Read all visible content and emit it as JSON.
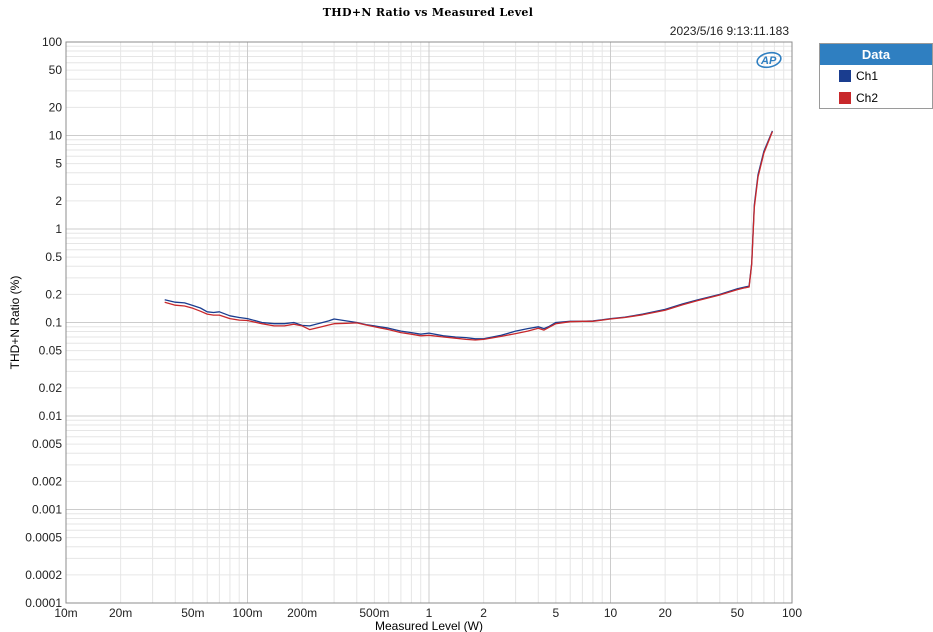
{
  "chart_data": {
    "type": "line",
    "title": "THD+N Ratio vs Measured Level",
    "timestamp": "2023/5/16 9:13:11.183",
    "xlabel": "Measured Level (W)",
    "ylabel": "THD+N Ratio (%)",
    "xscale": "log",
    "yscale": "log",
    "xlim": [
      0.01,
      100
    ],
    "ylim": [
      0.0001,
      100
    ],
    "grid": true,
    "x_ticks": [
      {
        "v": 0.01,
        "label": "10m"
      },
      {
        "v": 0.02,
        "label": "20m"
      },
      {
        "v": 0.05,
        "label": "50m"
      },
      {
        "v": 0.1,
        "label": "100m"
      },
      {
        "v": 0.2,
        "label": "200m"
      },
      {
        "v": 0.5,
        "label": "500m"
      },
      {
        "v": 1,
        "label": "1"
      },
      {
        "v": 2,
        "label": "2"
      },
      {
        "v": 5,
        "label": "5"
      },
      {
        "v": 10,
        "label": "10"
      },
      {
        "v": 20,
        "label": "20"
      },
      {
        "v": 50,
        "label": "50"
      },
      {
        "v": 100,
        "label": "100"
      }
    ],
    "y_ticks": [
      {
        "v": 100,
        "label": "100"
      },
      {
        "v": 50,
        "label": "50"
      },
      {
        "v": 20,
        "label": "20"
      },
      {
        "v": 10,
        "label": "10"
      },
      {
        "v": 5,
        "label": "5"
      },
      {
        "v": 2,
        "label": "2"
      },
      {
        "v": 1,
        "label": "1"
      },
      {
        "v": 0.5,
        "label": "0.5"
      },
      {
        "v": 0.2,
        "label": "0.2"
      },
      {
        "v": 0.1,
        "label": "0.1"
      },
      {
        "v": 0.05,
        "label": "0.05"
      },
      {
        "v": 0.02,
        "label": "0.02"
      },
      {
        "v": 0.01,
        "label": "0.01"
      },
      {
        "v": 0.005,
        "label": "0.005"
      },
      {
        "v": 0.002,
        "label": "0.002"
      },
      {
        "v": 0.001,
        "label": "0.001"
      },
      {
        "v": 0.0005,
        "label": "0.0005"
      },
      {
        "v": 0.0002,
        "label": "0.0002"
      },
      {
        "v": 0.0001,
        "label": "0.0001"
      }
    ],
    "legend": {
      "title": "Data",
      "position": "right"
    },
    "series": [
      {
        "name": "Ch1",
        "color": "#1a3d8f",
        "x": [
          0.035,
          0.04,
          0.045,
          0.05,
          0.055,
          0.06,
          0.065,
          0.07,
          0.08,
          0.09,
          0.1,
          0.12,
          0.14,
          0.16,
          0.18,
          0.2,
          0.22,
          0.25,
          0.28,
          0.3,
          0.35,
          0.4,
          0.45,
          0.5,
          0.6,
          0.7,
          0.8,
          0.9,
          1.0,
          1.2,
          1.4,
          1.6,
          1.8,
          2.0,
          2.5,
          3.0,
          3.5,
          4.0,
          4.3,
          4.6,
          5.0,
          6.0,
          7.0,
          8.0,
          9.0,
          10,
          12,
          15,
          20,
          25,
          30,
          40,
          50,
          55,
          58,
          60,
          62,
          65,
          70,
          78
        ],
        "y": [
          0.175,
          0.165,
          0.162,
          0.152,
          0.143,
          0.13,
          0.128,
          0.13,
          0.118,
          0.113,
          0.11,
          0.1,
          0.097,
          0.097,
          0.1,
          0.093,
          0.092,
          0.098,
          0.104,
          0.109,
          0.104,
          0.1,
          0.095,
          0.092,
          0.087,
          0.081,
          0.078,
          0.075,
          0.077,
          0.072,
          0.07,
          0.069,
          0.067,
          0.067,
          0.073,
          0.081,
          0.086,
          0.09,
          0.086,
          0.091,
          0.1,
          0.103,
          0.103,
          0.104,
          0.107,
          0.11,
          0.114,
          0.123,
          0.138,
          0.158,
          0.174,
          0.2,
          0.23,
          0.24,
          0.245,
          0.43,
          1.8,
          3.8,
          6.8,
          11.2
        ]
      },
      {
        "name": "Ch2",
        "color": "#c8282b",
        "x": [
          0.035,
          0.04,
          0.045,
          0.05,
          0.055,
          0.06,
          0.065,
          0.07,
          0.08,
          0.09,
          0.1,
          0.12,
          0.14,
          0.16,
          0.18,
          0.2,
          0.22,
          0.25,
          0.28,
          0.3,
          0.35,
          0.4,
          0.45,
          0.5,
          0.6,
          0.7,
          0.8,
          0.9,
          1.0,
          1.2,
          1.4,
          1.6,
          1.8,
          2.0,
          2.5,
          3.0,
          3.5,
          4.0,
          4.3,
          4.6,
          5.0,
          6.0,
          7.0,
          8.0,
          9.0,
          10,
          12,
          15,
          20,
          25,
          30,
          40,
          50,
          55,
          58,
          60,
          62,
          65,
          70,
          78
        ],
        "y": [
          0.165,
          0.153,
          0.15,
          0.142,
          0.132,
          0.123,
          0.12,
          0.12,
          0.11,
          0.106,
          0.105,
          0.097,
          0.092,
          0.092,
          0.096,
          0.092,
          0.084,
          0.089,
          0.094,
          0.097,
          0.098,
          0.099,
          0.094,
          0.09,
          0.084,
          0.078,
          0.075,
          0.072,
          0.073,
          0.07,
          0.068,
          0.066,
          0.065,
          0.066,
          0.071,
          0.076,
          0.081,
          0.087,
          0.083,
          0.089,
          0.097,
          0.102,
          0.103,
          0.103,
          0.106,
          0.109,
          0.113,
          0.121,
          0.135,
          0.155,
          0.171,
          0.197,
          0.225,
          0.235,
          0.24,
          0.42,
          1.7,
          3.6,
          6.5,
          11.0
        ]
      }
    ]
  }
}
